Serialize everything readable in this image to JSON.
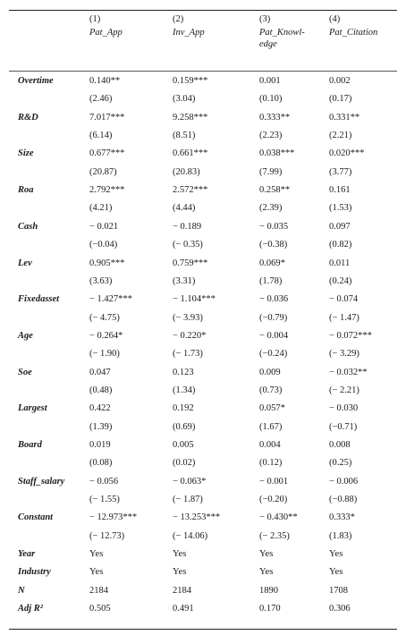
{
  "top_fragment": "",
  "columns": [
    {
      "num": "(1)",
      "name": "Pat_App"
    },
    {
      "num": "(2)",
      "name": "Inv_App"
    },
    {
      "num": "(3)",
      "name": "Pat_Knowl-edge"
    },
    {
      "num": "(4)",
      "name": "Pat_Citation"
    }
  ],
  "rows": [
    {
      "label": "Overtime",
      "values": [
        "0.140**",
        "0.159***",
        "0.001",
        "0.002"
      ]
    },
    {
      "label": "",
      "values": [
        "(2.46)",
        "(3.04)",
        "(0.10)",
        "(0.17)"
      ]
    },
    {
      "label": "R&D",
      "values": [
        "7.017***",
        "9.258***",
        "0.333**",
        "0.331**"
      ]
    },
    {
      "label": "",
      "values": [
        "(6.14)",
        "(8.51)",
        "(2.23)",
        "(2.21)"
      ]
    },
    {
      "label": "Size",
      "values": [
        "0.677***",
        "0.661***",
        "0.038***",
        "0.020***"
      ]
    },
    {
      "label": "",
      "values": [
        "(20.87)",
        "(20.83)",
        "(7.99)",
        "(3.77)"
      ]
    },
    {
      "label": "Roa",
      "values": [
        "2.792***",
        "2.572***",
        "0.258**",
        "0.161"
      ]
    },
    {
      "label": "",
      "values": [
        "(4.21)",
        "(4.44)",
        "(2.39)",
        "(1.53)"
      ]
    },
    {
      "label": "Cash",
      "values": [
        "− 0.021",
        "− 0.189",
        "− 0.035",
        "0.097"
      ]
    },
    {
      "label": "",
      "values": [
        "(−0.04)",
        "(− 0.35)",
        "(−0.38)",
        "(0.82)"
      ]
    },
    {
      "label": "Lev",
      "values": [
        "0.905***",
        "0.759***",
        "0.069*",
        "0.011"
      ]
    },
    {
      "label": "",
      "values": [
        "(3.63)",
        "(3.31)",
        "(1.78)",
        "(0.24)"
      ]
    },
    {
      "label": "Fixedasset",
      "values": [
        "− 1.427***",
        "− 1.104***",
        "− 0.036",
        "− 0.074"
      ]
    },
    {
      "label": "",
      "values": [
        "(− 4.75)",
        "(− 3.93)",
        "(−0.79)",
        "(− 1.47)"
      ]
    },
    {
      "label": "Age",
      "values": [
        "− 0.264*",
        "− 0.220*",
        "− 0.004",
        "− 0.072***"
      ]
    },
    {
      "label": "",
      "values": [
        "(− 1.90)",
        "(− 1.73)",
        "(−0.24)",
        "(− 3.29)"
      ]
    },
    {
      "label": "Soe",
      "values": [
        "0.047",
        "0.123",
        "0.009",
        "− 0.032**"
      ]
    },
    {
      "label": "",
      "values": [
        "(0.48)",
        "(1.34)",
        "(0.73)",
        "(− 2.21)"
      ]
    },
    {
      "label": "Largest",
      "values": [
        "0.422",
        "0.192",
        "0.057*",
        "− 0.030"
      ]
    },
    {
      "label": "",
      "values": [
        "(1.39)",
        "(0.69)",
        "(1.67)",
        "(−0.71)"
      ]
    },
    {
      "label": "Board",
      "values": [
        "0.019",
        "0.005",
        "0.004",
        "0.008"
      ]
    },
    {
      "label": "",
      "values": [
        "(0.08)",
        "(0.02)",
        "(0.12)",
        "(0.25)"
      ]
    },
    {
      "label": "Staff_salary",
      "values": [
        "− 0.056",
        "− 0.063*",
        "− 0.001",
        "− 0.006"
      ]
    },
    {
      "label": "",
      "values": [
        "(− 1.55)",
        "(− 1.87)",
        "(−0.20)",
        "(−0.88)"
      ]
    },
    {
      "label": "Constant",
      "values": [
        "− 12.973***",
        "− 13.253***",
        "− 0.430**",
        "0.333*"
      ]
    },
    {
      "label": "",
      "values": [
        "(− 12.73)",
        "(− 14.06)",
        "(− 2.35)",
        "(1.83)"
      ]
    },
    {
      "label": "Year",
      "values": [
        "Yes",
        "Yes",
        "Yes",
        "Yes"
      ]
    },
    {
      "label": "Industry",
      "values": [
        "Yes",
        "Yes",
        "Yes",
        "Yes"
      ]
    },
    {
      "label": "N",
      "values": [
        "2184",
        "2184",
        "1890",
        "1708"
      ]
    },
    {
      "label": "Adj R²",
      "values": [
        "0.505",
        "0.491",
        "0.170",
        "0.306"
      ]
    }
  ]
}
